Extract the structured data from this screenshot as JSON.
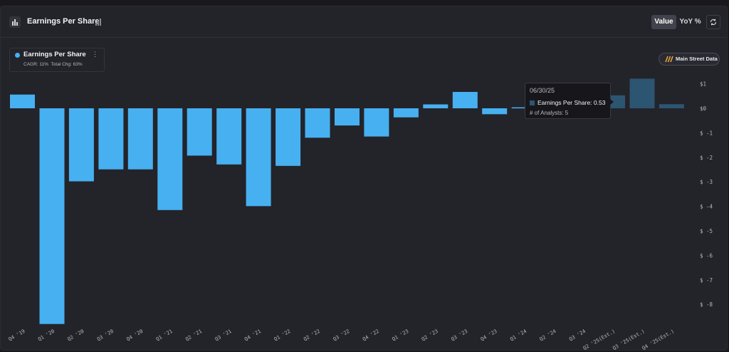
{
  "header": {
    "title": "Earnings Per Share",
    "value_label": "Value",
    "yoy_label": "YoY %"
  },
  "legend": {
    "series_name": "Earnings Per Share",
    "cagr": "CAGR: 11%",
    "total_change": "Total Chg: 63%",
    "color": "#47b0f0"
  },
  "main_street_button": "Main Street Data",
  "tooltip": {
    "date": "06/30/25",
    "series_label": "Earnings Per Share:",
    "series_value": "0.53",
    "analysts": "# of Analysts: 5"
  },
  "chart_data": {
    "type": "bar",
    "categories": [
      "Q4 '19",
      "Q1 '20",
      "Q2 '20",
      "Q3 '20",
      "Q4 '20",
      "Q1 '21",
      "Q2 '21",
      "Q3 '21",
      "Q4 '21",
      "Q1 '22",
      "Q2 '22",
      "Q3 '22",
      "Q4 '22",
      "Q1 '23",
      "Q2 '23",
      "Q3 '23",
      "Q4 '23",
      "Q1 '24",
      "Q2 '24",
      "Q3 '24",
      "Q2 '25(Est.)",
      "Q3 '25(Est.)",
      "Q4 '25(Est.)"
    ],
    "series": [
      {
        "name": "Earnings Per Share",
        "values": [
          0.56,
          -8.8,
          -2.98,
          -2.49,
          -2.49,
          -4.15,
          -1.93,
          -2.29,
          -3.99,
          -2.35,
          -1.2,
          -0.7,
          -1.15,
          -0.37,
          0.16,
          0.67,
          -0.24,
          0.04,
          null,
          null,
          0.53,
          1.21,
          0.17
        ],
        "estimated": [
          false,
          false,
          false,
          false,
          false,
          false,
          false,
          false,
          false,
          false,
          false,
          false,
          false,
          false,
          false,
          false,
          false,
          false,
          false,
          false,
          true,
          true,
          true
        ]
      }
    ],
    "y_ticks": [
      1,
      0,
      -1,
      -2,
      -3,
      -4,
      -5,
      -6,
      -7,
      -8
    ],
    "y_tick_labels": [
      "$1",
      "$0",
      "$ -1",
      "$ -2",
      "$ -3",
      "$ -4",
      "$ -5",
      "$ -6",
      "$ -7",
      "$ -8"
    ],
    "ylim": [
      -8.8,
      1.21
    ],
    "colors": {
      "actual": "#47b0f0",
      "estimate": "#2c5572"
    },
    "grid": false
  }
}
